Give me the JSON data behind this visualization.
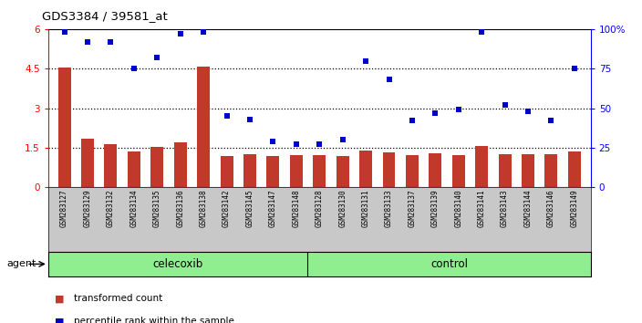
{
  "title": "GDS3384 / 39581_at",
  "categories": [
    "GSM283127",
    "GSM283129",
    "GSM283132",
    "GSM283134",
    "GSM283135",
    "GSM283136",
    "GSM283138",
    "GSM283142",
    "GSM283145",
    "GSM283147",
    "GSM283148",
    "GSM283128",
    "GSM283130",
    "GSM283131",
    "GSM283133",
    "GSM283137",
    "GSM283139",
    "GSM283140",
    "GSM283141",
    "GSM283143",
    "GSM283144",
    "GSM283146",
    "GSM283149"
  ],
  "bar_values": [
    4.55,
    1.85,
    1.62,
    1.35,
    1.52,
    1.7,
    4.57,
    1.2,
    1.27,
    1.18,
    1.23,
    1.23,
    1.2,
    1.38,
    1.32,
    1.22,
    1.3,
    1.22,
    1.58,
    1.27,
    1.27,
    1.27,
    1.35
  ],
  "dot_values": [
    98,
    92,
    92,
    75,
    82,
    97,
    98,
    45,
    43,
    29,
    27,
    27,
    30,
    80,
    68,
    42,
    47,
    49,
    98,
    52,
    48,
    42,
    75
  ],
  "celecoxib_count": 11,
  "control_count": 12,
  "bar_color": "#c0392b",
  "dot_color": "#0000cc",
  "green_bg": "#90ee90",
  "gray_bg": "#c8c8c8",
  "agent_label": "agent",
  "celecoxib_label": "celecoxib",
  "control_label": "control",
  "legend_bar_label": "transformed count",
  "legend_dot_label": "percentile rank within the sample",
  "ylim_left": [
    0,
    6
  ],
  "ylim_right": [
    0,
    100
  ],
  "yticks_left": [
    0,
    1.5,
    3.0,
    4.5,
    6.0
  ],
  "ytick_left_labels": [
    "0",
    "1.5",
    "3",
    "4.5",
    "6"
  ],
  "yticks_right": [
    0,
    25,
    50,
    75,
    100
  ],
  "ytick_right_labels": [
    "0",
    "25",
    "50",
    "75",
    "100%"
  ],
  "hlines": [
    1.5,
    3.0,
    4.5
  ],
  "plot_bg": "#ffffff"
}
